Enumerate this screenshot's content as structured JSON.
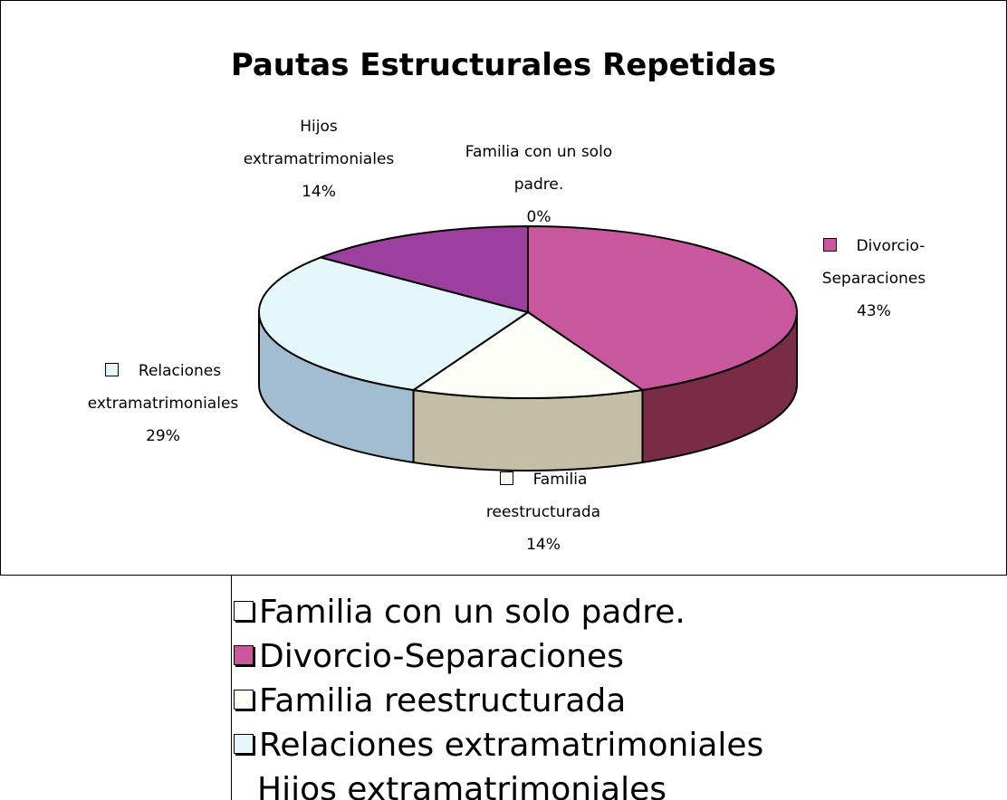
{
  "chart_data": {
    "type": "pie",
    "title": "Pautas Estructurales Repetidas",
    "categories": [
      "Familia con un solo padre.",
      "Divorcio-Separaciones",
      "Familia reestructurada",
      "Relaciones extramatrimoniales",
      "Hijos extramatrimoniales"
    ],
    "values": [
      0,
      43,
      14,
      29,
      14
    ],
    "value_labels": [
      "0%",
      "43%",
      "14%",
      "29%",
      "14%"
    ],
    "colors": [
      "#ffffff",
      "#c9579d",
      "#fdfdf8",
      "#e6f7fb",
      "#9c3f9e"
    ],
    "side_colors": [
      "#dddddd",
      "#7a2b45",
      "#c4bea6",
      "#a2bcd2",
      "#6a2a6e"
    ]
  }
}
